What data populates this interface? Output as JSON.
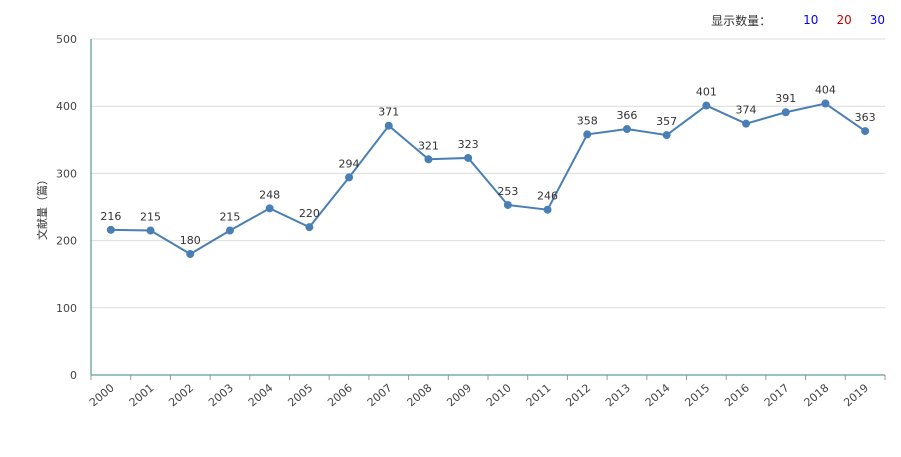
{
  "controls": {
    "label": "显示数量：",
    "options": [
      {
        "label": "10",
        "color": "#0000ff"
      },
      {
        "label": "20",
        "color": "#cc0000"
      },
      {
        "label": "30",
        "color": "#0000ff"
      }
    ]
  },
  "chart_data": {
    "type": "line",
    "ylabel": "文献量（篇）",
    "ylim": [
      0,
      500
    ],
    "yticks": [
      "0",
      "100",
      "200",
      "300",
      "400",
      "500"
    ],
    "grid": true,
    "categories": [
      "2000",
      "2001",
      "2002",
      "2003",
      "2004",
      "2005",
      "2006",
      "2007",
      "2008",
      "2009",
      "2010",
      "2011",
      "2012",
      "2013",
      "2014",
      "2015",
      "2016",
      "2017",
      "2018",
      "2019"
    ],
    "series": [
      {
        "values": [
          216,
          215,
          180,
          215,
          248,
          220,
          294,
          371,
          321,
          323,
          253,
          246,
          358,
          366,
          357,
          401,
          374,
          391,
          404,
          363
        ],
        "color": "#4a7fb5"
      }
    ],
    "axis_color": "#2e8b7a"
  }
}
